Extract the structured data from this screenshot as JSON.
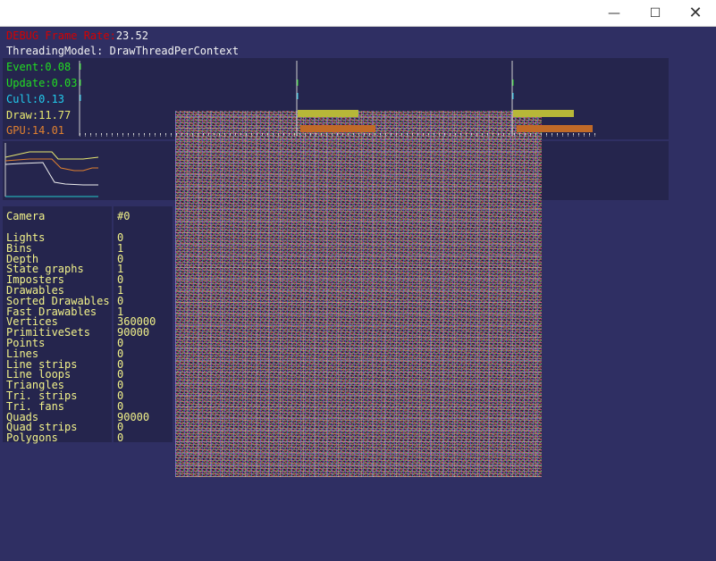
{
  "window": {
    "minimize_glyph": "—",
    "maximize_glyph": "☐",
    "close_glyph": "✕"
  },
  "stats_header": {
    "frame_rate_label": "DEBUG Frame Rate:",
    "frame_rate_value": "23.52",
    "threading_model": "ThreadingModel: DrawThreadPerContext"
  },
  "timing": [
    {
      "label": "Event:0.08",
      "color": "#22dd22"
    },
    {
      "label": "Update:0.03",
      "color": "#22dd22"
    },
    {
      "label": "Cull:0.13",
      "color": "#22ccee"
    },
    {
      "label": "Draw:11.77",
      "color": "#e8e870"
    },
    {
      "label": "GPU:14.01",
      "color": "#e08030"
    }
  ],
  "camera_stats": {
    "camera_label": "Camera",
    "camera_value": "#0",
    "rows": [
      {
        "label": "Lights",
        "value": "0"
      },
      {
        "label": "Bins",
        "value": "1"
      },
      {
        "label": "Depth",
        "value": "0"
      },
      {
        "label": "State graphs",
        "value": "1"
      },
      {
        "label": "Imposters",
        "value": "0"
      },
      {
        "label": "Drawables",
        "value": "1"
      },
      {
        "label": "Sorted Drawables",
        "value": "0"
      },
      {
        "label": "Fast Drawables",
        "value": "1"
      },
      {
        "label": "Vertices",
        "value": "360000"
      },
      {
        "label": "PrimitiveSets",
        "value": "90000"
      },
      {
        "label": "Points",
        "value": "0"
      },
      {
        "label": "Lines",
        "value": "0"
      },
      {
        "label": "Line strips",
        "value": "0"
      },
      {
        "label": "Line loops",
        "value": "0"
      },
      {
        "label": "Triangles",
        "value": "0"
      },
      {
        "label": "Tri. strips",
        "value": "0"
      },
      {
        "label": "Tri. fans",
        "value": "0"
      },
      {
        "label": "Quads",
        "value": "90000"
      },
      {
        "label": "Quad strips",
        "value": "0"
      },
      {
        "label": "Polygons",
        "value": "0"
      }
    ]
  },
  "colors": {
    "background": "#2f2f63",
    "panel": "#25254d",
    "stats_text": "#f2f28a",
    "draw_bar": "#b7b738",
    "gpu_bar": "#c06a28",
    "marker": "#cfcfcf"
  }
}
